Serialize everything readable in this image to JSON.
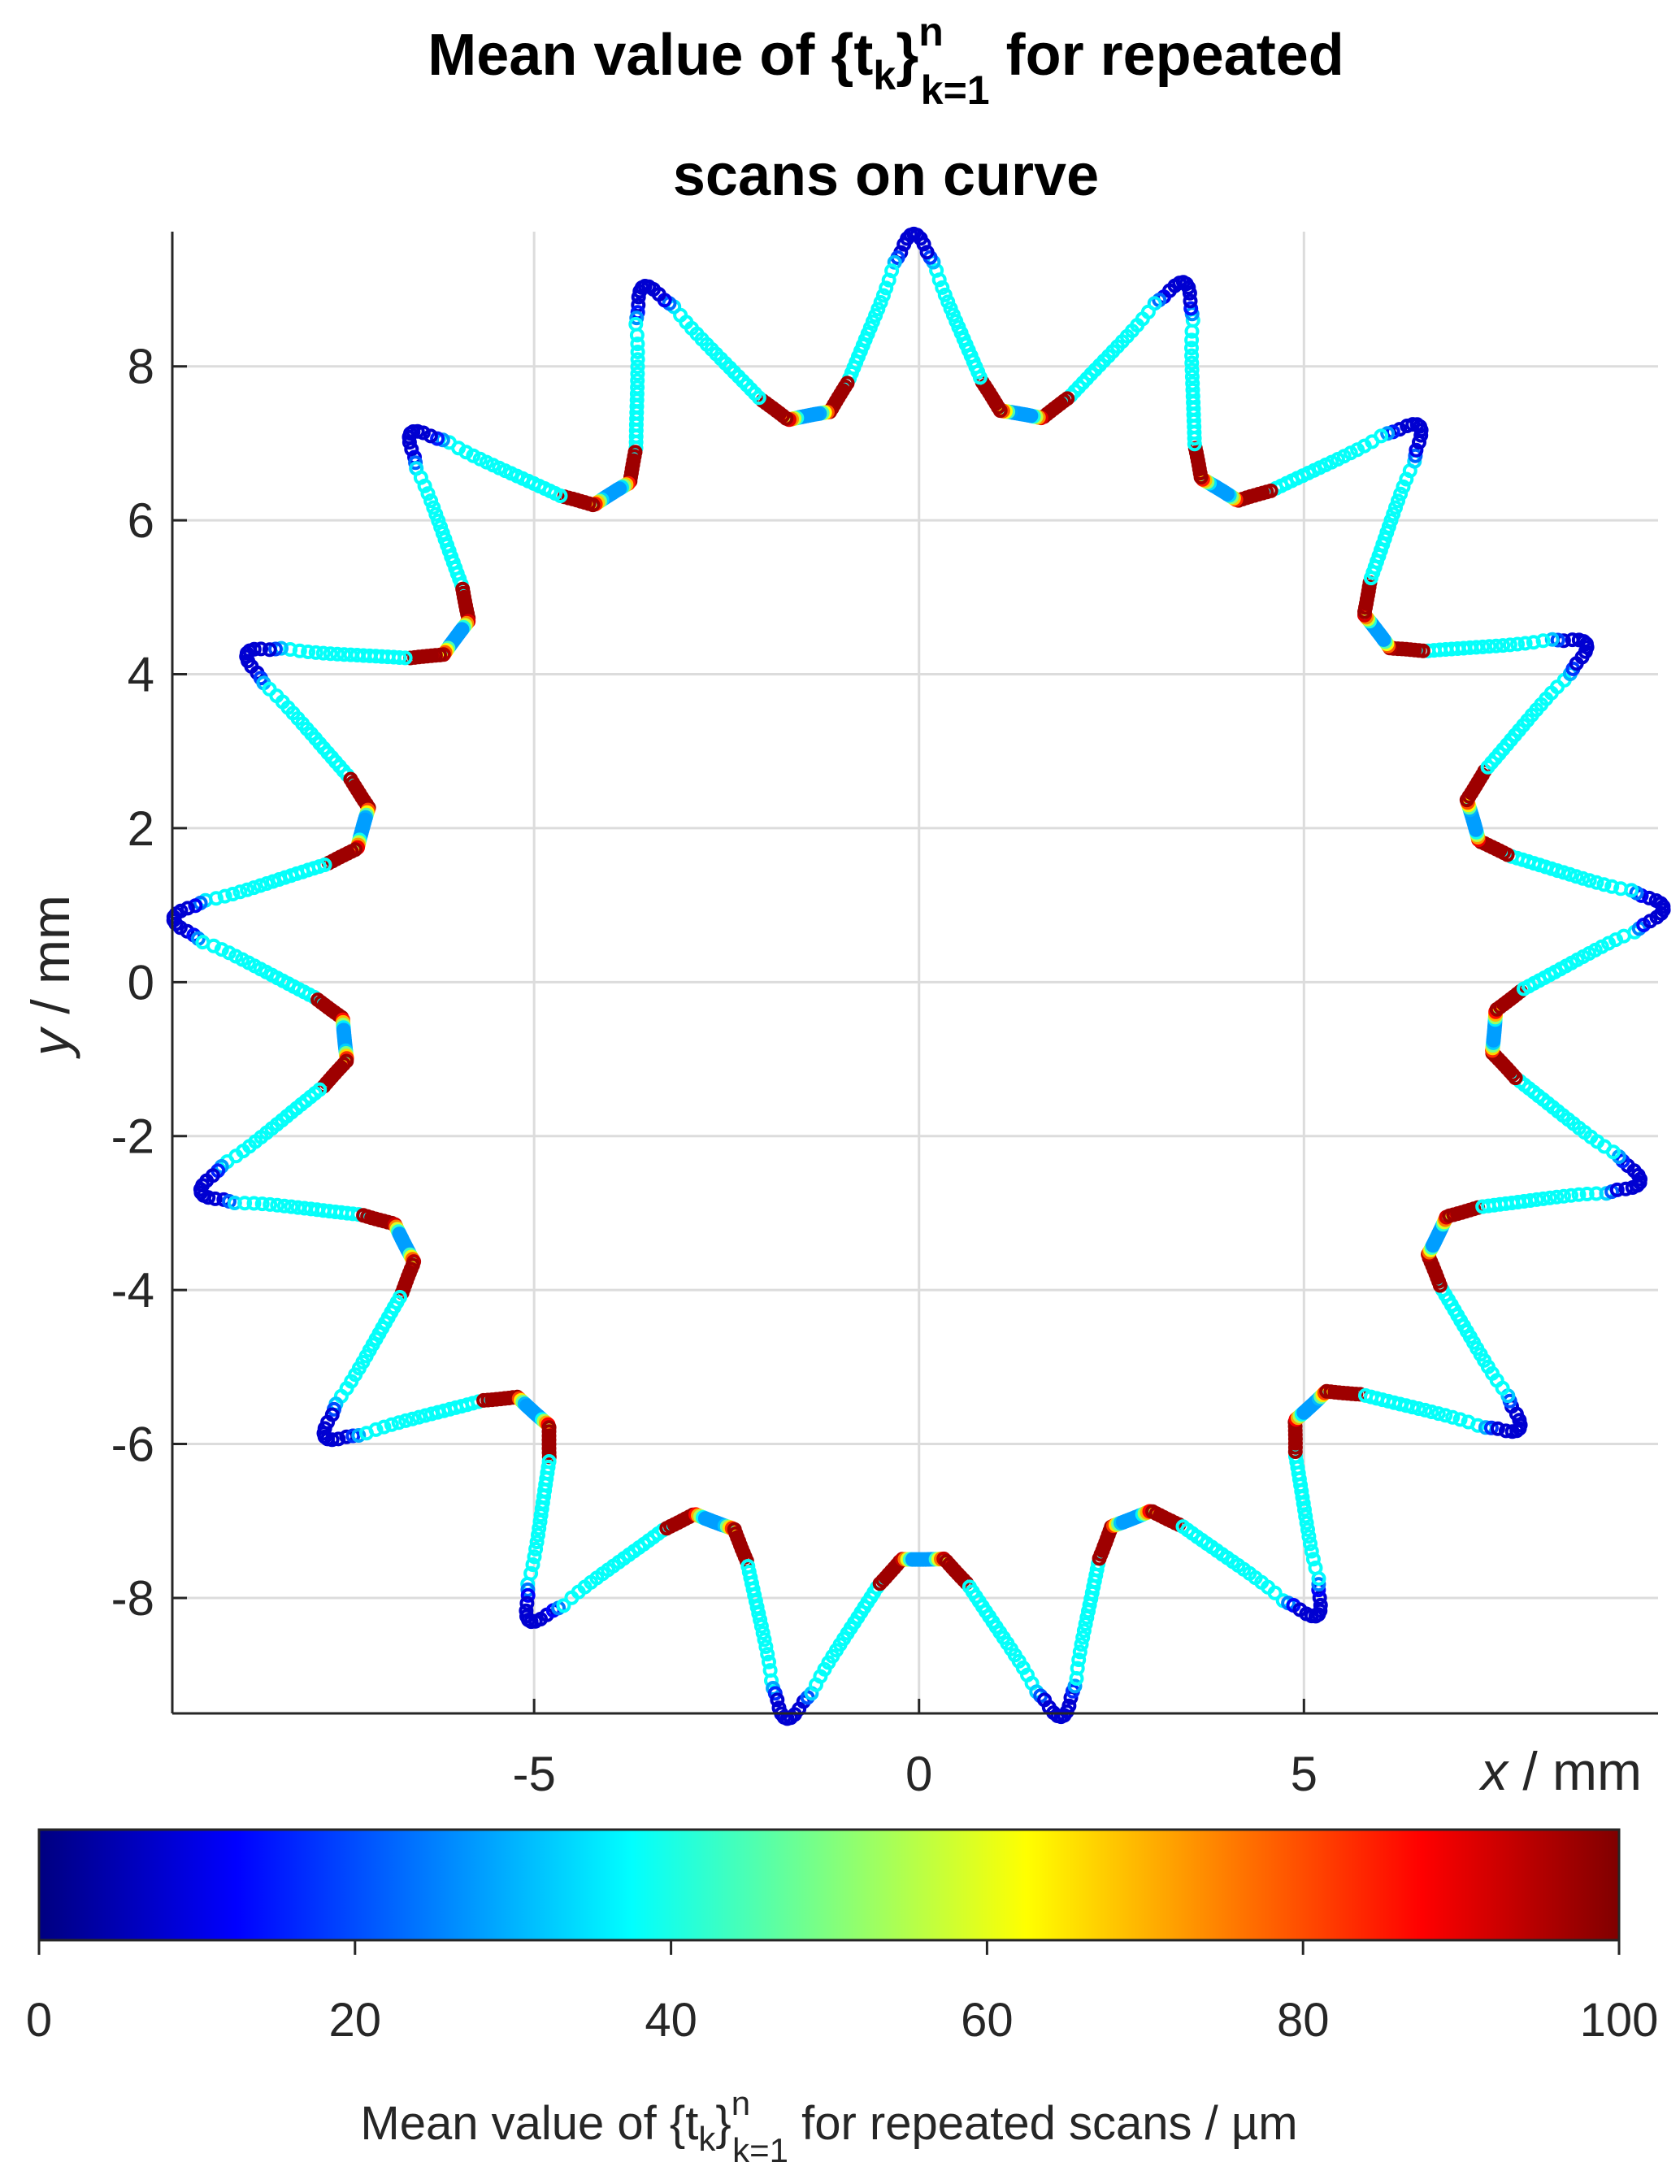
{
  "chart_data": {
    "type": "scatter",
    "title": {
      "line1_prefix": "Mean value of {t",
      "line1_sub": "k",
      "line1_mid": "}",
      "line1_sup": "n",
      "line1_sub2": "k=1",
      "line1_suffix": " for repeated",
      "line2": "scans on curve"
    },
    "xlabel": "x / mm",
    "ylabel": "y / mm",
    "x_axis_var": "x",
    "x_axis_unit": " / mm",
    "y_axis_var": "y",
    "y_axis_unit": " / mm",
    "xlim": [
      -9.7,
      9.6
    ],
    "ylim": [
      -9.5,
      9.75
    ],
    "x_ticks": [
      -5,
      0,
      5
    ],
    "x_tick_labels": [
      "-5",
      "0",
      "5"
    ],
    "y_ticks": [
      -8,
      -6,
      -4,
      -2,
      0,
      2,
      4,
      6,
      8
    ],
    "y_tick_labels": [
      "-8",
      "-6",
      "-4",
      "-2",
      "0",
      "2",
      "4",
      "6",
      "8"
    ],
    "grid": true,
    "colormap": "jet",
    "series": [
      {
        "marker": "o",
        "shape": "gear",
        "teeth": 17,
        "outer_radius_mm": 9.72,
        "root_radius_mm": 7.5,
        "first_tip_angle_deg": 90.4,
        "values_by_segment": {
          "tip_cap_um": 8,
          "tooth_flank_um": 38,
          "root_fillet_um": 97,
          "root_bottom_um": 28
        }
      }
    ],
    "colorbar": {
      "label_prefix": "Mean value of {t",
      "label_sub": "k",
      "label_mid": "}",
      "label_sup": "n",
      "label_sub2": "k=1",
      "label_suffix": " for repeated scans / µm",
      "clim": [
        0,
        100
      ],
      "ticks": [
        0,
        20,
        40,
        60,
        80,
        100
      ],
      "tick_labels": [
        "0",
        "20",
        "40",
        "60",
        "80",
        "100"
      ],
      "placement": "bottom"
    }
  }
}
